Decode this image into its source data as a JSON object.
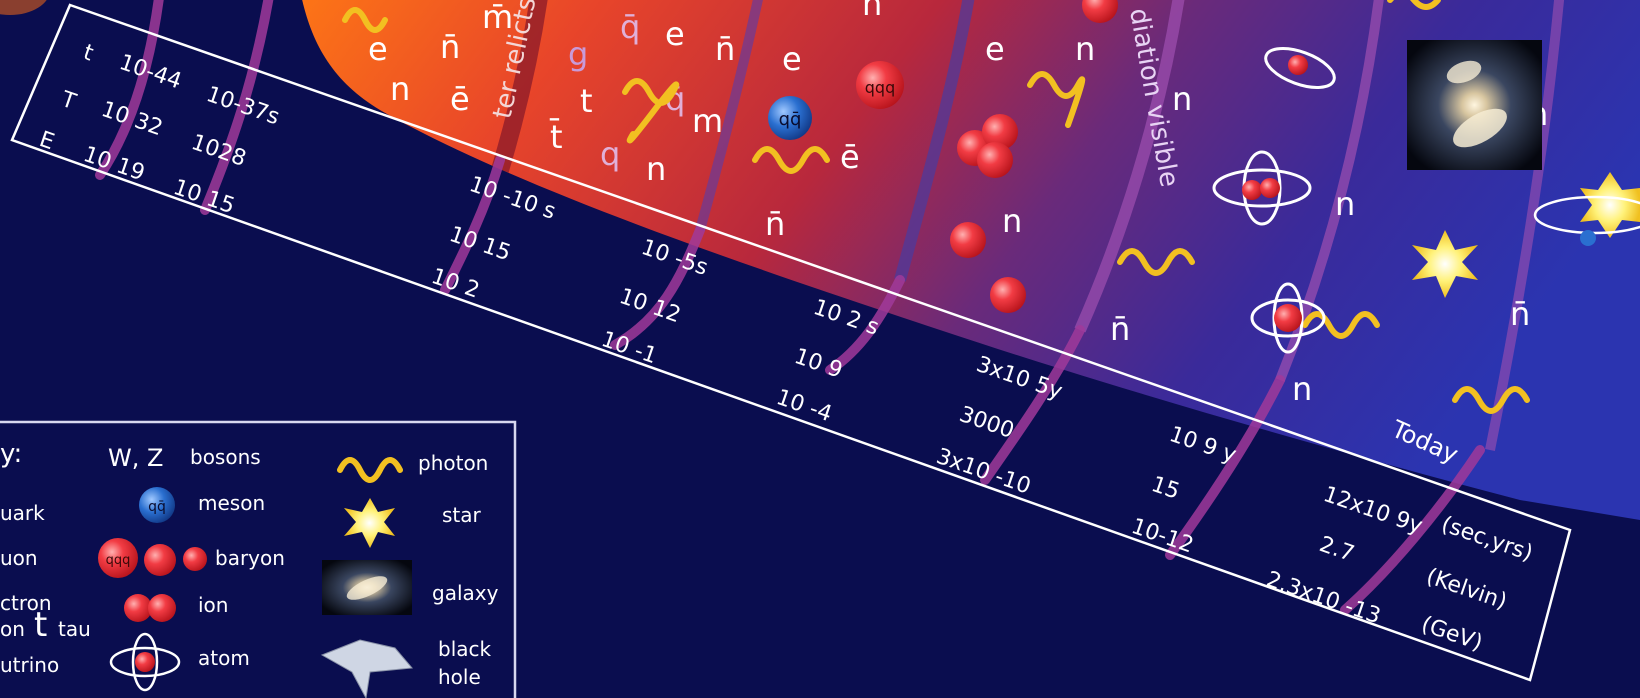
{
  "colors": {
    "background": "#0a0d4f",
    "epoch_band": "#7a3a8a",
    "timeline_border": "#ffffff",
    "photon": "#f2c021",
    "baryon": "#e8343a",
    "meson": "#2a6fd0"
  },
  "curve_labels": {
    "matter_relicts": "ter relicts",
    "radiation_visible": "diation visible"
  },
  "timeline_rows": {
    "t": "t",
    "T": "T",
    "E": "E"
  },
  "timeline": {
    "col1": {
      "t": "10-44",
      "T": "10 32",
      "E": "10 19"
    },
    "col2": {
      "t": "10-37s",
      "T": "1028",
      "E": "10 15"
    },
    "col3": {
      "t": "10 -10 s",
      "T": "10 15",
      "E": "10 2"
    },
    "col4": {
      "t": "10 -5s",
      "T": "10 12",
      "E": "10 -1"
    },
    "col5": {
      "t": "10 2 s",
      "T": "10 9",
      "E": "10 -4"
    },
    "col6": {
      "t": "3x10 5y",
      "T": "3000",
      "E": "3x10 -10"
    },
    "col7": {
      "t": "10 9 y",
      "T": "15",
      "E": "10-12"
    },
    "col8": {
      "t": "12x10 9y",
      "T": "2.7",
      "E": "2.3x10 -13"
    },
    "today": "Today",
    "units": {
      "t": "(sec,yrs)",
      "T": "(Kelvin)",
      "E": "(GeV)"
    }
  },
  "particles": {
    "e": "e",
    "n": "n",
    "n_bar": "n̄",
    "e_bar": "ē",
    "m": "m",
    "m_bar": "m̄",
    "q_bar": "q̄",
    "q": "q",
    "g": "g",
    "t": "t",
    "t_bar": "t̄",
    "meson_glyph": "qq̄",
    "baryon_glyph": "qqq"
  },
  "legend": {
    "title_fragment": "y:",
    "left_col": [
      "uark",
      "uon",
      "ctron",
      "on",
      "tau",
      "utrino"
    ],
    "tau_symbol": "t",
    "wz_symbol": "W, Z",
    "items": {
      "bosons": "bosons",
      "meson": "meson",
      "baryon": "baryon",
      "ion": "ion",
      "atom": "atom",
      "photon": "photon",
      "star": "star",
      "galaxy": "galaxy",
      "black_hole_1": "black",
      "black_hole_2": "hole"
    }
  }
}
